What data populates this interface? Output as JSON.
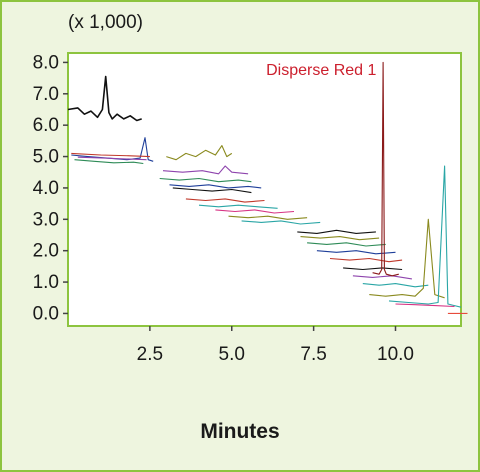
{
  "chart_data": {
    "type": "line",
    "title": "",
    "scale_note": "(x 1,000)",
    "xlabel": "Minutes",
    "ylabel": "",
    "xlim": [
      0.0,
      12.0
    ],
    "ylim": [
      -0.4,
      8.3
    ],
    "xticks": [
      {
        "value": 2.5,
        "label": "2.5"
      },
      {
        "value": 5.0,
        "label": "5.0"
      },
      {
        "value": 7.5,
        "label": "7.5"
      },
      {
        "value": 10.0,
        "label": "10.0"
      }
    ],
    "yticks": [
      {
        "value": 0.0,
        "label": "0.0"
      },
      {
        "value": 1.0,
        "label": "1.0"
      },
      {
        "value": 2.0,
        "label": "2.0"
      },
      {
        "value": 3.0,
        "label": "3.0"
      },
      {
        "value": 4.0,
        "label": "4.0"
      },
      {
        "value": 5.0,
        "label": "5.0"
      },
      {
        "value": 6.0,
        "label": "6.0"
      },
      {
        "value": 7.0,
        "label": "7.0"
      },
      {
        "value": 8.0,
        "label": "8.0"
      }
    ],
    "grid": false,
    "legend": "none",
    "annotation": {
      "text": "Disperse Red 1",
      "x": 9.6,
      "y": 7.6,
      "color": "#cc1f2d"
    },
    "series": [
      {
        "color": "#111111",
        "x": [
          0.0,
          0.3,
          0.5,
          0.7,
          0.9,
          1.05,
          1.15,
          1.25,
          1.35,
          1.5,
          1.7,
          1.9,
          2.1,
          2.25
        ],
        "y": [
          6.5,
          6.55,
          6.35,
          6.45,
          6.25,
          6.5,
          7.55,
          6.4,
          6.2,
          6.35,
          6.2,
          6.3,
          6.15,
          6.2
        ]
      },
      {
        "color": "#1f3f9a",
        "x": [
          0.1,
          0.6,
          1.2,
          1.8,
          2.2,
          2.35,
          2.45,
          2.6
        ],
        "y": [
          5.05,
          5.0,
          4.95,
          4.9,
          4.95,
          5.6,
          4.9,
          4.85
        ]
      },
      {
        "color": "#2e8b57",
        "x": [
          0.2,
          0.8,
          1.4,
          2.0,
          2.3
        ],
        "y": [
          4.9,
          4.85,
          4.8,
          4.82,
          4.78
        ]
      },
      {
        "color": "#c0392b",
        "x": [
          0.1,
          1.0,
          2.0,
          2.5
        ],
        "y": [
          5.1,
          5.05,
          5.02,
          5.0
        ]
      },
      {
        "color": "#8e44ad",
        "x": [
          0.3,
          1.1,
          1.9,
          2.4
        ],
        "y": [
          4.98,
          4.95,
          4.92,
          4.9
        ]
      },
      {
        "color": "#8a8a1f",
        "x": [
          3.0,
          3.3,
          3.6,
          3.9,
          4.2,
          4.5,
          4.7,
          4.85,
          5.0
        ],
        "y": [
          5.0,
          4.9,
          5.1,
          5.0,
          5.2,
          5.05,
          5.35,
          5.0,
          5.1
        ]
      },
      {
        "color": "#2e8b57",
        "x": [
          2.8,
          3.4,
          4.0,
          4.6,
          5.2,
          5.6
        ],
        "y": [
          4.3,
          4.25,
          4.3,
          4.2,
          4.25,
          4.2
        ]
      },
      {
        "color": "#8e44ad",
        "x": [
          2.9,
          3.5,
          4.1,
          4.6,
          4.8,
          5.0,
          5.5
        ],
        "y": [
          4.55,
          4.5,
          4.55,
          4.45,
          4.7,
          4.5,
          4.45
        ]
      },
      {
        "color": "#111111",
        "x": [
          3.2,
          3.8,
          4.4,
          5.0,
          5.6
        ],
        "y": [
          4.0,
          3.95,
          3.9,
          3.95,
          3.85
        ]
      },
      {
        "color": "#1f3f9a",
        "x": [
          3.1,
          3.7,
          4.3,
          4.9,
          5.5,
          5.9
        ],
        "y": [
          4.1,
          4.05,
          4.1,
          4.0,
          4.05,
          4.0
        ]
      },
      {
        "color": "#c0392b",
        "x": [
          3.6,
          4.2,
          4.8,
          5.4,
          6.0
        ],
        "y": [
          3.65,
          3.6,
          3.65,
          3.55,
          3.6
        ]
      },
      {
        "color": "#2aa6a6",
        "x": [
          4.0,
          4.6,
          5.2,
          5.8,
          6.4
        ],
        "y": [
          3.45,
          3.4,
          3.45,
          3.4,
          3.35
        ]
      },
      {
        "color": "#d63384",
        "x": [
          4.5,
          5.1,
          5.7,
          6.3,
          6.9
        ],
        "y": [
          3.3,
          3.25,
          3.3,
          3.2,
          3.25
        ]
      },
      {
        "color": "#8a8a1f",
        "x": [
          4.9,
          5.5,
          6.1,
          6.7,
          7.3
        ],
        "y": [
          3.1,
          3.05,
          3.1,
          3.0,
          3.05
        ]
      },
      {
        "color": "#2aa6a6",
        "x": [
          5.3,
          5.9,
          6.5,
          7.1,
          7.7
        ],
        "y": [
          2.95,
          2.9,
          2.95,
          2.85,
          2.9
        ]
      },
      {
        "color": "#111111",
        "x": [
          7.0,
          7.6,
          8.2,
          8.8,
          9.4
        ],
        "y": [
          2.6,
          2.55,
          2.65,
          2.55,
          2.6
        ]
      },
      {
        "color": "#8a8a1f",
        "x": [
          7.1,
          7.7,
          8.3,
          8.9,
          9.5
        ],
        "y": [
          2.45,
          2.4,
          2.45,
          2.35,
          2.4
        ]
      },
      {
        "color": "#2e8b57",
        "x": [
          7.3,
          7.9,
          8.5,
          9.1,
          9.7
        ],
        "y": [
          2.25,
          2.2,
          2.25,
          2.15,
          2.2
        ]
      },
      {
        "color": "#1f3f9a",
        "x": [
          7.6,
          8.2,
          8.8,
          9.4,
          10.0
        ],
        "y": [
          2.0,
          1.95,
          2.0,
          1.9,
          1.95
        ]
      },
      {
        "color": "#c0392b",
        "x": [
          8.0,
          8.6,
          9.2,
          9.8,
          10.2
        ],
        "y": [
          1.75,
          1.7,
          1.75,
          1.65,
          1.7
        ]
      },
      {
        "color": "#111111",
        "x": [
          8.4,
          9.0,
          9.6,
          10.2
        ],
        "y": [
          1.45,
          1.4,
          1.45,
          1.4
        ]
      },
      {
        "color": "#8e44ad",
        "x": [
          8.7,
          9.3,
          9.9,
          10.5
        ],
        "y": [
          1.2,
          1.15,
          1.2,
          1.1
        ]
      },
      {
        "color": "#2aa6a6",
        "x": [
          9.0,
          9.5,
          10.0,
          10.6,
          11.0
        ],
        "y": [
          0.95,
          0.9,
          0.95,
          0.85,
          0.9
        ]
      },
      {
        "color": "#8a8a1f",
        "x": [
          9.2,
          9.7,
          10.2,
          10.6,
          10.85,
          11.0,
          11.2,
          11.5
        ],
        "y": [
          0.6,
          0.55,
          0.6,
          0.55,
          0.8,
          3.0,
          0.6,
          0.5
        ]
      },
      {
        "color": "#2aa6a6",
        "x": [
          9.8,
          10.4,
          11.0,
          11.3,
          11.5,
          11.6,
          11.8,
          12.0
        ],
        "y": [
          0.4,
          0.35,
          0.3,
          0.35,
          4.7,
          0.3,
          0.25,
          0.2
        ]
      },
      {
        "color": "#d63384",
        "x": [
          10.0,
          10.6,
          11.2,
          11.8
        ],
        "y": [
          0.3,
          0.28,
          0.25,
          0.22
        ]
      },
      {
        "color": "#8b1a1a",
        "x": [
          9.3,
          9.5,
          9.58,
          9.62,
          9.66,
          9.72,
          9.9,
          10.1
        ],
        "y": [
          1.3,
          1.25,
          1.4,
          8.0,
          1.4,
          1.25,
          1.2,
          1.25
        ]
      },
      {
        "color": "#e74c3c",
        "x": [
          11.6,
          12.0,
          12.2
        ],
        "y": [
          0.0,
          0.0,
          0.0
        ]
      }
    ]
  }
}
